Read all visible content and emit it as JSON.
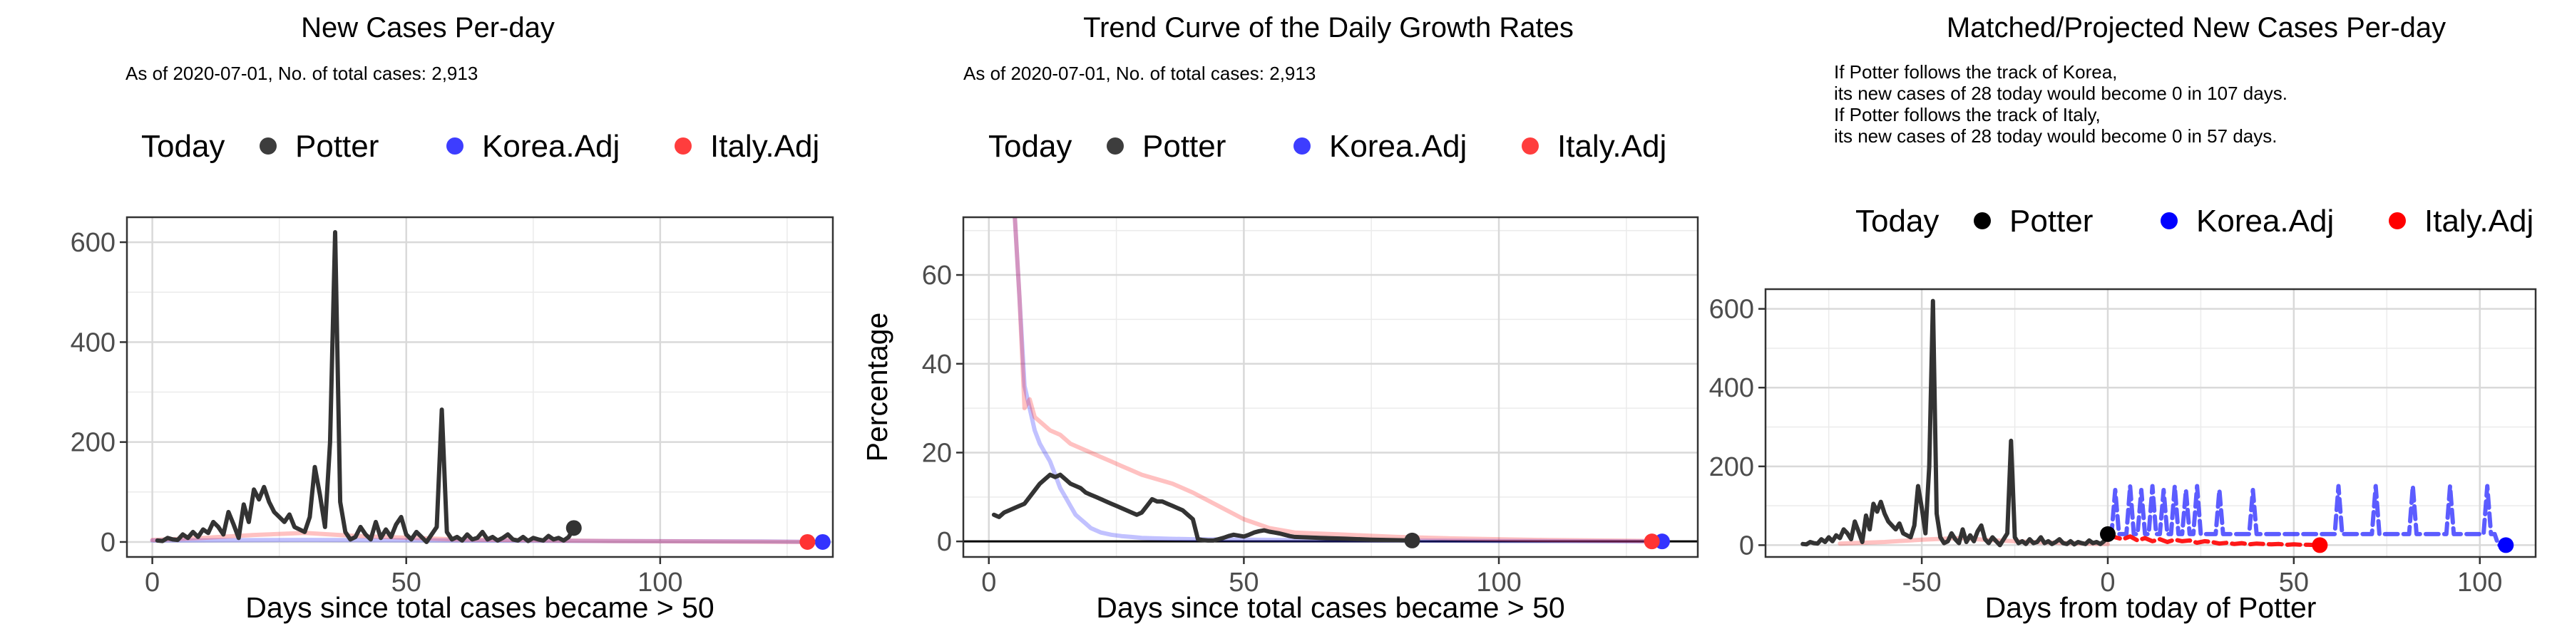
{
  "chart_data": [
    {
      "type": "line",
      "title": "New Cases Per-day",
      "subtitle": [
        "As of 2020-07-01, No. of total cases: 2,913"
      ],
      "legend": {
        "title": "Today",
        "placement": "top",
        "entries": [
          {
            "name": "Potter",
            "color": "#333333"
          },
          {
            "name": "Korea.Adj",
            "color": "#3333ff"
          },
          {
            "name": "Italy.Adj",
            "color": "#ff3333"
          }
        ]
      },
      "xlabel": "Days since total cases became > 50",
      "ylabel": "",
      "xlim": [
        -5,
        134
      ],
      "ylim": [
        -30,
        650
      ],
      "xticks": [
        0,
        50,
        100
      ],
      "yticks": [
        0,
        200,
        400,
        600
      ],
      "grid": true,
      "series": [
        {
          "name": "Korea.Adj",
          "color": "#3333ff",
          "opacity": 0.3,
          "x": [
            0,
            30,
            60,
            90,
            120,
            132
          ],
          "y": [
            3,
            4,
            3,
            2,
            1,
            0
          ]
        },
        {
          "name": "Italy.Adj",
          "color": "#ff3333",
          "opacity": 0.3,
          "x": [
            0,
            10,
            20,
            30,
            40,
            60,
            90,
            130
          ],
          "y": [
            4,
            8,
            14,
            18,
            12,
            5,
            2,
            0
          ]
        },
        {
          "name": "Potter",
          "color": "#333333",
          "opacity": 1,
          "x": [
            1,
            2,
            3,
            4,
            5,
            6,
            7,
            8,
            9,
            10,
            11,
            12,
            13,
            14,
            15,
            16,
            17,
            18,
            19,
            20,
            21,
            22,
            23,
            24,
            25,
            26,
            27,
            28,
            29,
            30,
            31,
            32,
            33,
            34,
            35,
            36,
            37,
            38,
            39,
            40,
            41,
            42,
            43,
            44,
            45,
            46,
            47,
            48,
            49,
            50,
            51,
            52,
            53,
            54,
            55,
            56,
            57,
            58,
            59,
            60,
            61,
            62,
            63,
            64,
            65,
            66,
            67,
            68,
            69,
            70,
            71,
            72,
            73,
            74,
            75,
            76,
            77,
            78,
            79,
            80,
            81,
            82,
            83
          ],
          "y": [
            3,
            2,
            8,
            5,
            4,
            15,
            8,
            20,
            10,
            25,
            18,
            40,
            30,
            15,
            60,
            35,
            8,
            75,
            40,
            105,
            85,
            110,
            80,
            60,
            50,
            40,
            55,
            30,
            25,
            20,
            50,
            150,
            95,
            30,
            200,
            620,
            80,
            20,
            5,
            10,
            30,
            15,
            5,
            40,
            8,
            25,
            10,
            35,
            50,
            15,
            5,
            20,
            10,
            0,
            15,
            30,
            265,
            20,
            5,
            10,
            3,
            15,
            5,
            8,
            20,
            5,
            10,
            3,
            8,
            15,
            5,
            3,
            10,
            2,
            8,
            5,
            3,
            12,
            5,
            8,
            3,
            10,
            28
          ]
        }
      ],
      "today_points": [
        {
          "name": "Potter",
          "x": 83,
          "y": 28
        },
        {
          "name": "Korea.Adj",
          "x": 132,
          "y": 0
        },
        {
          "name": "Italy.Adj",
          "x": 129,
          "y": 0
        }
      ]
    },
    {
      "type": "line",
      "title": "Trend Curve of the Daily Growth Rates",
      "subtitle": [
        "As of 2020-07-01, No. of total cases: 2,913"
      ],
      "legend": {
        "title": "Today",
        "placement": "top",
        "entries": [
          {
            "name": "Potter",
            "color": "#333333"
          },
          {
            "name": "Korea.Adj",
            "color": "#3333ff"
          },
          {
            "name": "Italy.Adj",
            "color": "#ff3333"
          }
        ]
      },
      "xlabel": "Days since total cases became > 50",
      "ylabel": "Percentage",
      "xlim": [
        -5,
        139
      ],
      "ylim": [
        -3.5,
        73
      ],
      "xticks": [
        0,
        50,
        100
      ],
      "yticks": [
        0,
        20,
        40,
        60
      ],
      "grid": true,
      "hline": 0,
      "series": [
        {
          "name": "Korea.Adj",
          "color": "#3333ff",
          "opacity": 0.3,
          "x": [
            5,
            6,
            7,
            8,
            9,
            10,
            11,
            12,
            13,
            14,
            15,
            16,
            17,
            18,
            19,
            20,
            22,
            24,
            26,
            28,
            30,
            35,
            40,
            50,
            60,
            80,
            100,
            132
          ],
          "y": [
            75,
            55,
            35,
            30,
            25,
            22,
            20,
            18,
            15,
            12,
            10,
            8,
            6,
            5,
            4,
            3,
            2,
            1.5,
            1.2,
            1,
            0.8,
            0.6,
            0.5,
            0.4,
            0.3,
            0.2,
            0.1,
            0
          ]
        },
        {
          "name": "Italy.Adj",
          "color": "#ff3333",
          "opacity": 0.3,
          "x": [
            5,
            6,
            7,
            8,
            9,
            10,
            12,
            14,
            16,
            18,
            20,
            22,
            24,
            26,
            28,
            30,
            33,
            36,
            40,
            45,
            50,
            55,
            60,
            70,
            80,
            90,
            100,
            110,
            120,
            130
          ],
          "y": [
            75,
            55,
            30,
            32,
            28,
            27,
            25,
            24,
            22,
            21,
            20,
            19,
            18,
            17,
            16,
            15,
            14,
            13,
            11,
            8,
            5,
            3,
            2,
            1.5,
            1,
            0.7,
            0.5,
            0.3,
            0.2,
            0.1
          ]
        },
        {
          "name": "Potter",
          "color": "#333333",
          "opacity": 1,
          "x": [
            1,
            2,
            3,
            4,
            5,
            6,
            7,
            8,
            9,
            10,
            11,
            12,
            13,
            14,
            15,
            16,
            17,
            18,
            19,
            20,
            21,
            22,
            23,
            24,
            25,
            26,
            27,
            28,
            29,
            30,
            31,
            32,
            33,
            34,
            35,
            36,
            37,
            38,
            39,
            40,
            41,
            42,
            43,
            44,
            45,
            46,
            47,
            48,
            49,
            50,
            51,
            52,
            53,
            54,
            55,
            56,
            57,
            58,
            59,
            60,
            65,
            70,
            75,
            83
          ],
          "y": [
            6,
            5.5,
            6.5,
            7,
            7.5,
            8,
            8.5,
            10,
            11.5,
            13,
            14,
            15,
            14.5,
            15,
            14,
            13,
            12.5,
            12,
            11,
            10.5,
            10,
            9.5,
            9,
            8.5,
            8,
            7.5,
            7,
            6.5,
            6,
            6.5,
            8,
            9.5,
            9,
            9,
            8.5,
            8,
            7.5,
            7,
            6,
            5,
            0.5,
            0.3,
            0.2,
            0.2,
            0.5,
            0.8,
            1.2,
            1.5,
            1.3,
            1.1,
            1.5,
            2,
            2.3,
            2.5,
            2.2,
            2,
            1.8,
            1.5,
            1.2,
            1,
            0.8,
            0.6,
            0.4,
            0.2
          ]
        }
      ],
      "today_points": [
        {
          "name": "Potter",
          "x": 83,
          "y": 0.2
        },
        {
          "name": "Korea.Adj",
          "x": 132,
          "y": 0
        },
        {
          "name": "Italy.Adj",
          "x": 130,
          "y": 0
        }
      ]
    },
    {
      "type": "line",
      "title": "Matched/Projected New Cases Per-day",
      "subtitle": [
        "If Potter follows the track of Korea,",
        "its new cases of 28 today would become 0 in 107 days.",
        "If Potter follows the track of Italy,",
        "its new cases of 28 today would become 0 in 57 days."
      ],
      "legend": {
        "title": "Today",
        "placement": "top",
        "entries": [
          {
            "name": "Potter",
            "color": "#000000"
          },
          {
            "name": "Korea.Adj",
            "color": "#0000ff"
          },
          {
            "name": "Italy.Adj",
            "color": "#ff0000"
          }
        ]
      },
      "xlabel": "Days from today of Potter",
      "ylabel": "",
      "xlim": [
        -92,
        115
      ],
      "ylim": [
        -30,
        650
      ],
      "xticks": [
        -50,
        0,
        50,
        100
      ],
      "yticks": [
        0,
        200,
        400,
        600
      ],
      "grid": true,
      "series": [
        {
          "name": "Italy.Adj (matched)",
          "color": "#ff3333",
          "opacity": 0.3,
          "x": [
            -72,
            -60,
            -50,
            -40,
            -30,
            -20,
            -10,
            0
          ],
          "y": [
            4,
            8,
            14,
            18,
            12,
            8,
            5,
            3
          ]
        },
        {
          "name": "Potter",
          "color": "#333333",
          "opacity": 1,
          "x": [
            -82,
            -81,
            -80,
            -79,
            -78,
            -77,
            -76,
            -75,
            -74,
            -73,
            -72,
            -71,
            -70,
            -69,
            -68,
            -67,
            -66,
            -65,
            -64,
            -63,
            -62,
            -61,
            -60,
            -59,
            -58,
            -57,
            -56,
            -55,
            -54,
            -53,
            -52,
            -51,
            -50,
            -49,
            -48,
            -47,
            -46,
            -45,
            -44,
            -43,
            -42,
            -41,
            -40,
            -39,
            -38,
            -37,
            -36,
            -35,
            -34,
            -33,
            -32,
            -31,
            -30,
            -29,
            -28,
            -27,
            -26,
            -25,
            -24,
            -23,
            -22,
            -21,
            -20,
            -19,
            -18,
            -17,
            -16,
            -15,
            -14,
            -13,
            -12,
            -11,
            -10,
            -9,
            -8,
            -7,
            -6,
            -5,
            -4,
            -3,
            -2,
            -1,
            0
          ],
          "y": [
            3,
            2,
            8,
            5,
            4,
            15,
            8,
            20,
            10,
            25,
            18,
            40,
            30,
            15,
            60,
            35,
            8,
            75,
            40,
            105,
            85,
            110,
            80,
            60,
            50,
            40,
            55,
            30,
            25,
            20,
            50,
            150,
            95,
            30,
            200,
            620,
            80,
            20,
            5,
            10,
            30,
            15,
            5,
            40,
            8,
            25,
            10,
            35,
            50,
            15,
            5,
            20,
            10,
            0,
            15,
            30,
            265,
            20,
            5,
            10,
            3,
            15,
            5,
            8,
            20,
            5,
            10,
            3,
            8,
            15,
            5,
            3,
            10,
            2,
            8,
            5,
            3,
            12,
            5,
            8,
            3,
            10,
            28
          ]
        },
        {
          "name": "Korea.Adj (projected)",
          "color": "#3333ff",
          "opacity": 0.8,
          "dashed": true,
          "x": [
            0,
            1,
            2,
            3,
            4,
            5,
            6,
            7,
            8,
            9,
            10,
            11,
            12,
            13,
            14,
            15,
            16,
            17,
            18,
            19,
            20,
            21,
            22,
            23,
            24,
            25,
            26,
            27,
            28,
            29,
            30,
            31,
            32,
            33,
            34,
            35,
            36,
            37,
            38,
            39,
            40,
            41,
            42,
            43,
            44,
            45,
            46,
            47,
            48,
            49,
            50,
            51,
            52,
            53,
            54,
            55,
            56,
            57,
            58,
            59,
            60,
            61,
            62,
            63,
            64,
            65,
            66,
            67,
            68,
            69,
            70,
            71,
            72,
            73,
            74,
            75,
            76,
            77,
            78,
            79,
            80,
            81,
            82,
            83,
            84,
            85,
            86,
            87,
            88,
            89,
            90,
            91,
            92,
            93,
            94,
            95,
            96,
            97,
            98,
            99,
            100,
            101,
            102,
            103,
            104,
            105,
            106,
            107
          ],
          "y": [
            28,
            28,
            140,
            28,
            28,
            28,
            150,
            28,
            28,
            140,
            28,
            28,
            150,
            28,
            28,
            140,
            28,
            28,
            150,
            28,
            28,
            140,
            28,
            28,
            150,
            28,
            28,
            28,
            28,
            28,
            140,
            28,
            28,
            28,
            28,
            28,
            28,
            28,
            28,
            140,
            28,
            28,
            28,
            28,
            28,
            28,
            28,
            28,
            28,
            28,
            28,
            28,
            28,
            28,
            28,
            28,
            28,
            28,
            28,
            28,
            28,
            28,
            150,
            28,
            28,
            28,
            28,
            28,
            28,
            28,
            28,
            28,
            150,
            28,
            28,
            28,
            28,
            28,
            28,
            28,
            28,
            28,
            150,
            28,
            28,
            28,
            28,
            28,
            28,
            28,
            28,
            28,
            150,
            28,
            28,
            28,
            28,
            28,
            28,
            28,
            28,
            28,
            150,
            28,
            28,
            0,
            0,
            0
          ]
        },
        {
          "name": "Italy.Adj (projected)",
          "color": "#ff0000",
          "opacity": 0.9,
          "dashed": true,
          "x": [
            0,
            2,
            4,
            6,
            8,
            10,
            12,
            14,
            16,
            18,
            20,
            22,
            24,
            26,
            28,
            30,
            32,
            34,
            36,
            38,
            40,
            42,
            44,
            46,
            48,
            50,
            52,
            54,
            56,
            57
          ],
          "y": [
            28,
            20,
            15,
            22,
            12,
            18,
            10,
            15,
            8,
            14,
            10,
            12,
            6,
            10,
            8,
            4,
            6,
            3,
            5,
            2,
            4,
            3,
            2,
            3,
            1,
            2,
            1,
            1,
            0,
            0
          ]
        }
      ],
      "today_points": [
        {
          "name": "Potter",
          "x": 0,
          "y": 28
        },
        {
          "name": "Korea.Adj",
          "x": 107,
          "y": 0
        },
        {
          "name": "Italy.Adj",
          "x": 57,
          "y": 0
        }
      ]
    }
  ]
}
